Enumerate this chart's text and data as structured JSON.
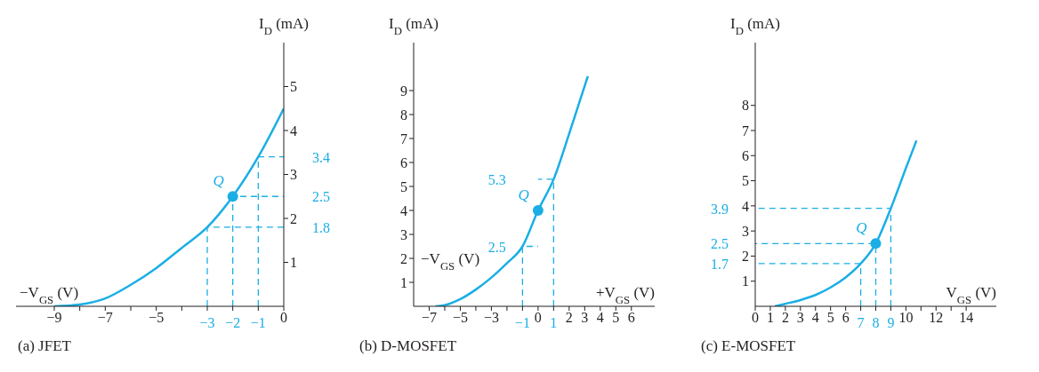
{
  "chart_data": [
    {
      "type": "line",
      "title": "(a) JFET",
      "xlabel": "−V$_{GS}$ (V)",
      "ylabel": "I$_{D}$ (mA)",
      "xlim": [
        -10.5,
        0
      ],
      "ylim": [
        0,
        6
      ],
      "xticks": [
        {
          "value": -9,
          "label": "−9"
        },
        {
          "value": -8,
          "label": null
        },
        {
          "value": -7,
          "label": "−7"
        },
        {
          "value": -6,
          "label": null
        },
        {
          "value": -5,
          "label": "−5"
        },
        {
          "value": -4,
          "label": null
        },
        {
          "value": -3,
          "label": null
        },
        {
          "value": -2,
          "label": null
        },
        {
          "value": -1,
          "label": null
        },
        0
      ],
      "yticks": [
        1,
        2,
        3,
        4,
        5
      ],
      "annotations": [
        {
          "text": "3.4",
          "x": 0,
          "y": 3.4
        },
        {
          "text": "2.5",
          "x": 0,
          "y": 2.5
        },
        {
          "text": "1.8",
          "x": 0,
          "y": 1.8
        },
        {
          "text": "−3",
          "x": -3,
          "y": 0
        },
        {
          "text": "−2",
          "x": -2,
          "y": 0
        },
        {
          "text": "−1",
          "x": -1,
          "y": 0
        }
      ],
      "series": [
        {
          "type": "line",
          "color": "#1aaee5",
          "marker": "none",
          "x": [
            -9,
            -8,
            -7,
            -6,
            -5,
            -4,
            -3,
            -2,
            -1,
            0
          ],
          "values": [
            0,
            0.04,
            0.18,
            0.49,
            0.87,
            1.33,
            1.8,
            2.5,
            3.4,
            4.5
          ]
        },
        {
          "type": "line",
          "color": "#1aaee5",
          "line_style": "dashed",
          "marker": "none",
          "x": [
            -3,
            -3,
            0
          ],
          "values": [
            0,
            1.8,
            1.8
          ]
        },
        {
          "type": "line",
          "color": "#1aaee5",
          "line_style": "dashed",
          "marker": "none",
          "x": [
            -2,
            -2,
            0
          ],
          "values": [
            0,
            2.5,
            2.5
          ]
        },
        {
          "type": "line",
          "color": "#1aaee5",
          "line_style": "dashed",
          "marker": "none",
          "x": [
            -1,
            -1,
            0
          ],
          "values": [
            0,
            3.4,
            3.4
          ]
        },
        {
          "type": "scatter",
          "name": "Q",
          "color": "#1aaee5",
          "marker": "circle",
          "x": [
            -2
          ],
          "values": [
            2.5
          ]
        }
      ]
    },
    {
      "type": "line",
      "title": "(b) D-MOSFET",
      "xlabel": "+V$_{GS}$ (V)",
      "ylabel": "I$_{D}$ (mA)",
      "xlim": [
        -8,
        7.5
      ],
      "ylim": [
        0,
        11
      ],
      "xticks": [
        {
          "value": -7,
          "label": "−7"
        },
        {
          "value": -6,
          "label": null
        },
        {
          "value": -5,
          "label": "−5"
        },
        {
          "value": -4,
          "label": null
        },
        {
          "value": -3,
          "label": "−3"
        },
        {
          "value": -2,
          "label": null
        },
        {
          "value": -1,
          "label": null
        },
        0,
        {
          "value": 1,
          "label": null
        },
        2,
        3,
        4,
        5,
        6
      ],
      "yticks": [
        1,
        2,
        3,
        4,
        5,
        6,
        7,
        8,
        9
      ],
      "annotations": [
        "−V$_{GS}$ (V)",
        {
          "text": "5.3",
          "x": 0,
          "y": 5.3
        },
        {
          "text": "2.5",
          "x": 0,
          "y": 2.5
        },
        {
          "text": "−1",
          "x": -1,
          "y": 0
        },
        {
          "text": "1",
          "x": 1,
          "y": 0
        }
      ],
      "series": [
        {
          "type": "line",
          "color": "#1aaee5",
          "marker": "none",
          "x": [
            -6.6,
            -6,
            -5,
            -4,
            -3,
            -2,
            -1,
            0,
            1,
            2,
            3.2
          ],
          "values": [
            0,
            0.05,
            0.3,
            0.7,
            1.2,
            1.8,
            2.5,
            4,
            5.3,
            7.2,
            9.6
          ]
        },
        {
          "type": "line",
          "color": "#1aaee5",
          "line_style": "dashed",
          "marker": "none",
          "x": [
            -1,
            -1,
            0
          ],
          "values": [
            0,
            2.5,
            2.5
          ]
        },
        {
          "type": "line",
          "color": "#1aaee5",
          "line_style": "dashed",
          "marker": "none",
          "x": [
            1,
            1,
            0
          ],
          "values": [
            0,
            5.3,
            5.3
          ]
        },
        {
          "type": "scatter",
          "name": "Q",
          "color": "#1aaee5",
          "marker": "circle",
          "x": [
            0
          ],
          "values": [
            4
          ]
        }
      ]
    },
    {
      "type": "line",
      "title": "(c) E-MOSFET",
      "xlabel": "V$_{GS}$ (V)",
      "ylabel": "I$_{D}$ (mA)",
      "xlim": [
        0,
        16
      ],
      "ylim": [
        0,
        10.5
      ],
      "xticks": [
        0,
        1,
        2,
        3,
        4,
        5,
        6,
        {
          "value": 7,
          "label": null
        },
        {
          "value": 8,
          "label": null
        },
        {
          "value": 9,
          "label": null
        },
        10,
        {
          "value": 11,
          "label": null
        },
        12,
        {
          "value": 13,
          "label": null
        },
        14
      ],
      "yticks": [
        1,
        2,
        3,
        4,
        5,
        6,
        7,
        8
      ],
      "annotations": [
        {
          "text": "3.9",
          "x": 0,
          "y": 3.9
        },
        {
          "text": "2.5",
          "x": 0,
          "y": 2.5
        },
        {
          "text": "1.7",
          "x": 0,
          "y": 1.7
        },
        {
          "text": "7",
          "x": 7,
          "y": 0
        },
        {
          "text": "8",
          "x": 8,
          "y": 0
        },
        {
          "text": "9",
          "x": 9,
          "y": 0
        }
      ],
      "series": [
        {
          "type": "line",
          "color": "#1aaee5",
          "marker": "none",
          "x": [
            1.3,
            2,
            3,
            4,
            5,
            6,
            7,
            8,
            9,
            10,
            10.7
          ],
          "values": [
            0,
            0.1,
            0.25,
            0.45,
            0.75,
            1.15,
            1.7,
            2.5,
            3.9,
            5.5,
            6.6
          ]
        },
        {
          "type": "line",
          "color": "#1aaee5",
          "line_style": "dashed",
          "marker": "none",
          "x": [
            7,
            7,
            0
          ],
          "values": [
            0,
            1.7,
            1.7
          ]
        },
        {
          "type": "line",
          "color": "#1aaee5",
          "line_style": "dashed",
          "marker": "none",
          "x": [
            8,
            8,
            0
          ],
          "values": [
            0,
            2.5,
            2.5
          ]
        },
        {
          "type": "line",
          "color": "#1aaee5",
          "line_style": "dashed",
          "marker": "none",
          "x": [
            9,
            9,
            0
          ],
          "values": [
            0,
            3.9,
            3.9
          ]
        },
        {
          "type": "scatter",
          "name": "Q",
          "color": "#1aaee5",
          "marker": "circle",
          "x": [
            8
          ],
          "values": [
            2.5
          ]
        }
      ]
    }
  ]
}
